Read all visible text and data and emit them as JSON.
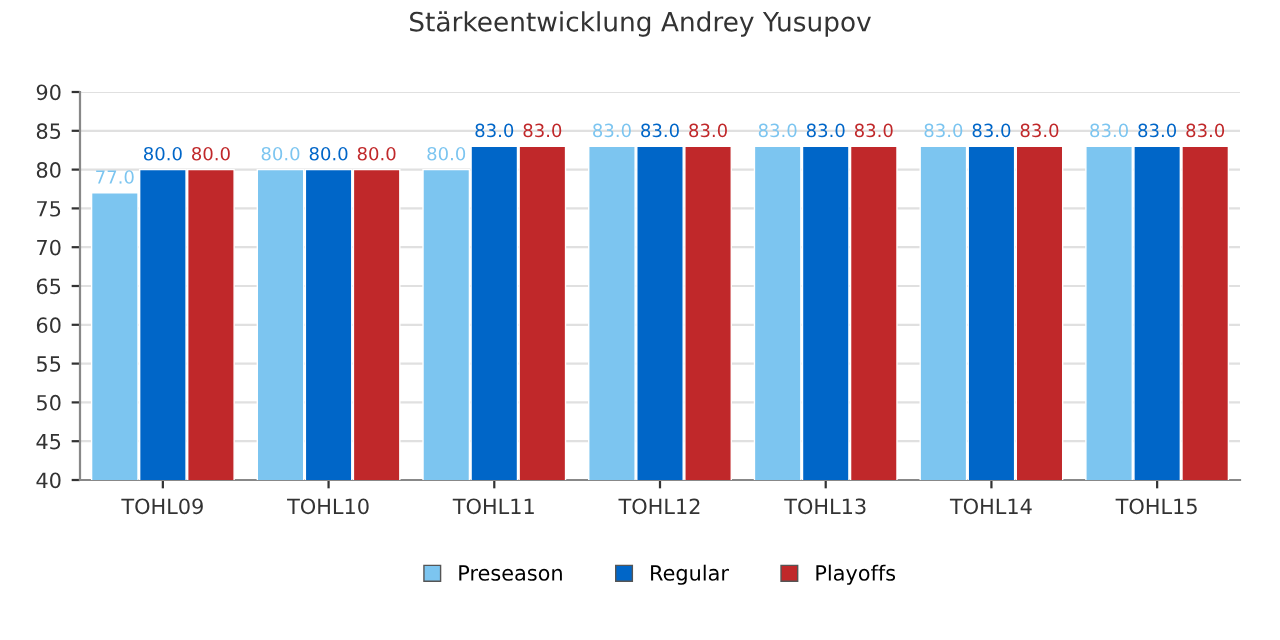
{
  "chart_data": {
    "type": "bar",
    "title": "Stärkeentwicklung Andrey Yusupov",
    "categories": [
      "TOHL09",
      "TOHL10",
      "TOHL11",
      "TOHL12",
      "TOHL13",
      "TOHL14",
      "TOHL15"
    ],
    "series": [
      {
        "name": "Preseason",
        "color": "#7cc5f0",
        "values": [
          77,
          80,
          80,
          83,
          83,
          83,
          83
        ],
        "value_labels": [
          "77.0",
          "80.0",
          "80.0",
          "83.0",
          "83.0",
          "83.0",
          "83.0"
        ]
      },
      {
        "name": "Regular",
        "color": "#0066c8",
        "values": [
          80,
          80,
          83,
          83,
          83,
          83,
          83
        ],
        "value_labels": [
          "80.0",
          "80.0",
          "83.0",
          "83.0",
          "83.0",
          "83.0",
          "83.0"
        ]
      },
      {
        "name": "Playoffs",
        "color": "#c0282a",
        "values": [
          80,
          80,
          83,
          83,
          83,
          83,
          83
        ],
        "value_labels": [
          "80.0",
          "80.0",
          "83.0",
          "83.0",
          "83.0",
          "83.0",
          "83.0"
        ]
      }
    ],
    "ylim": [
      40,
      90
    ],
    "yticks": [
      40,
      45,
      50,
      55,
      60,
      65,
      70,
      75,
      80,
      85,
      90
    ],
    "grid": "y",
    "legend": "bottom"
  }
}
